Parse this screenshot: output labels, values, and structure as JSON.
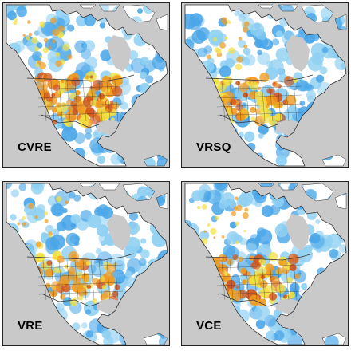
{
  "panels": [
    {
      "label": "CVRE",
      "intensity": 1.0
    },
    {
      "label": "VRSQ",
      "intensity": 0.55
    },
    {
      "label": "VRE",
      "intensity": 0.5
    },
    {
      "label": "VCE",
      "intensity": 0.6
    }
  ],
  "colors": {
    "ocean": "#c9c9c9",
    "land_base": "#ffffff",
    "light_blue": "#8fd0f2",
    "blue": "#4aa6e8",
    "yellow": "#f2e040",
    "orange": "#f09a1e",
    "red": "#d2541a",
    "lines": "#333333"
  }
}
